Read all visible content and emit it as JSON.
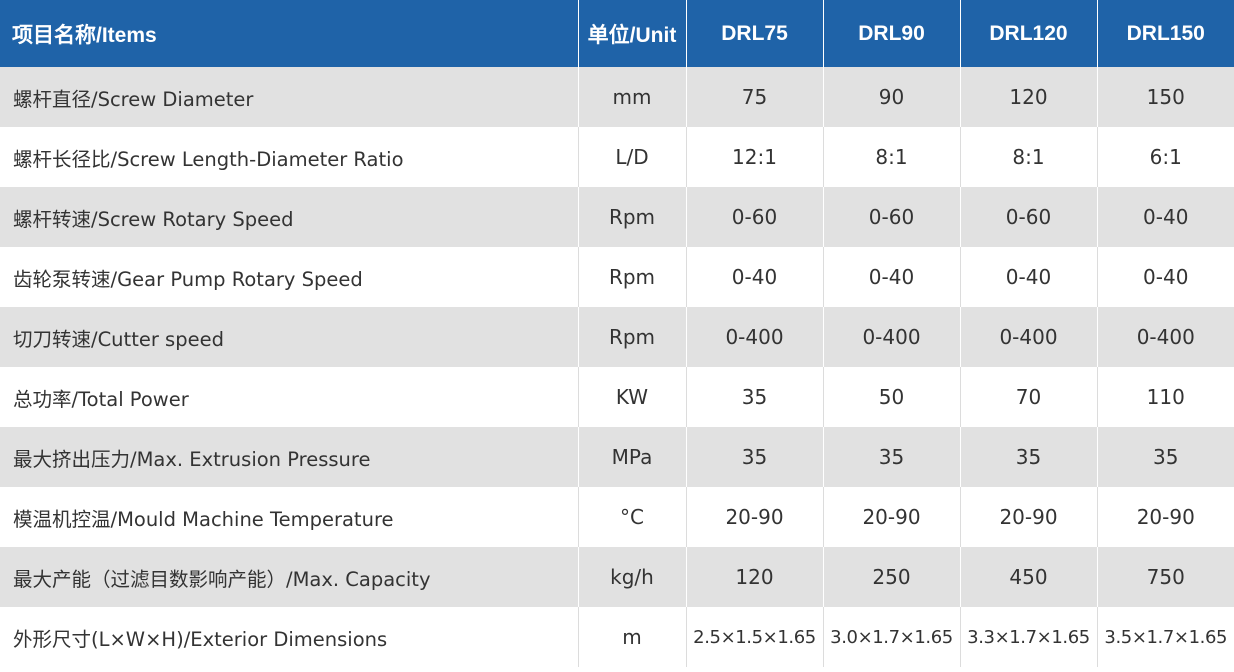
{
  "header": {
    "item": "项目名称/Items",
    "unit": "单位/Unit",
    "models": [
      "DRL75",
      "DRL90",
      "DRL120",
      "DRL150"
    ]
  },
  "colors": {
    "header_bg": "#1f63a8",
    "header_text": "#ffffff",
    "row_shaded": "#e1e1e1",
    "row_plain": "#ffffff",
    "body_text": "#333333"
  },
  "rows": [
    {
      "item": "螺杆直径/Screw Diameter",
      "unit": "mm",
      "values": [
        "75",
        "90",
        "120",
        "150"
      ]
    },
    {
      "item": "螺杆长径比/Screw Length-Diameter Ratio",
      "unit": "L/D",
      "values": [
        "12:1",
        "8:1",
        "8:1",
        "6:1"
      ]
    },
    {
      "item": "螺杆转速/Screw Rotary Speed",
      "unit": "Rpm",
      "values": [
        "0-60",
        "0-60",
        "0-60",
        "0-40"
      ]
    },
    {
      "item": "齿轮泵转速/Gear Pump Rotary Speed",
      "unit": "Rpm",
      "values": [
        "0-40",
        "0-40",
        "0-40",
        "0-40"
      ]
    },
    {
      "item": "切刀转速/Cutter speed",
      "unit": "Rpm",
      "values": [
        "0-400",
        "0-400",
        "0-400",
        "0-400"
      ]
    },
    {
      "item": "总功率/Total Power",
      "unit": "KW",
      "values": [
        "35",
        "50",
        "70",
        "110"
      ]
    },
    {
      "item": "最大挤出压力/Max. Extrusion Pressure",
      "unit": "MPa",
      "values": [
        "35",
        "35",
        "35",
        "35"
      ]
    },
    {
      "item": "模温机控温/Mould Machine Temperature",
      "unit": "°C",
      "values": [
        "20-90",
        "20-90",
        "20-90",
        "20-90"
      ]
    },
    {
      "item": "最大产能（过滤目数影响产能）/Max. Capacity",
      "unit": "kg/h",
      "values": [
        "120",
        "250",
        "450",
        "750"
      ]
    },
    {
      "item": "外形尺寸(L×W×H)/Exterior Dimensions",
      "unit": "m",
      "values": [
        "2.5×1.5×1.65",
        "3.0×1.7×1.65",
        "3.3×1.7×1.65",
        "3.5×1.7×1.65"
      ]
    }
  ]
}
